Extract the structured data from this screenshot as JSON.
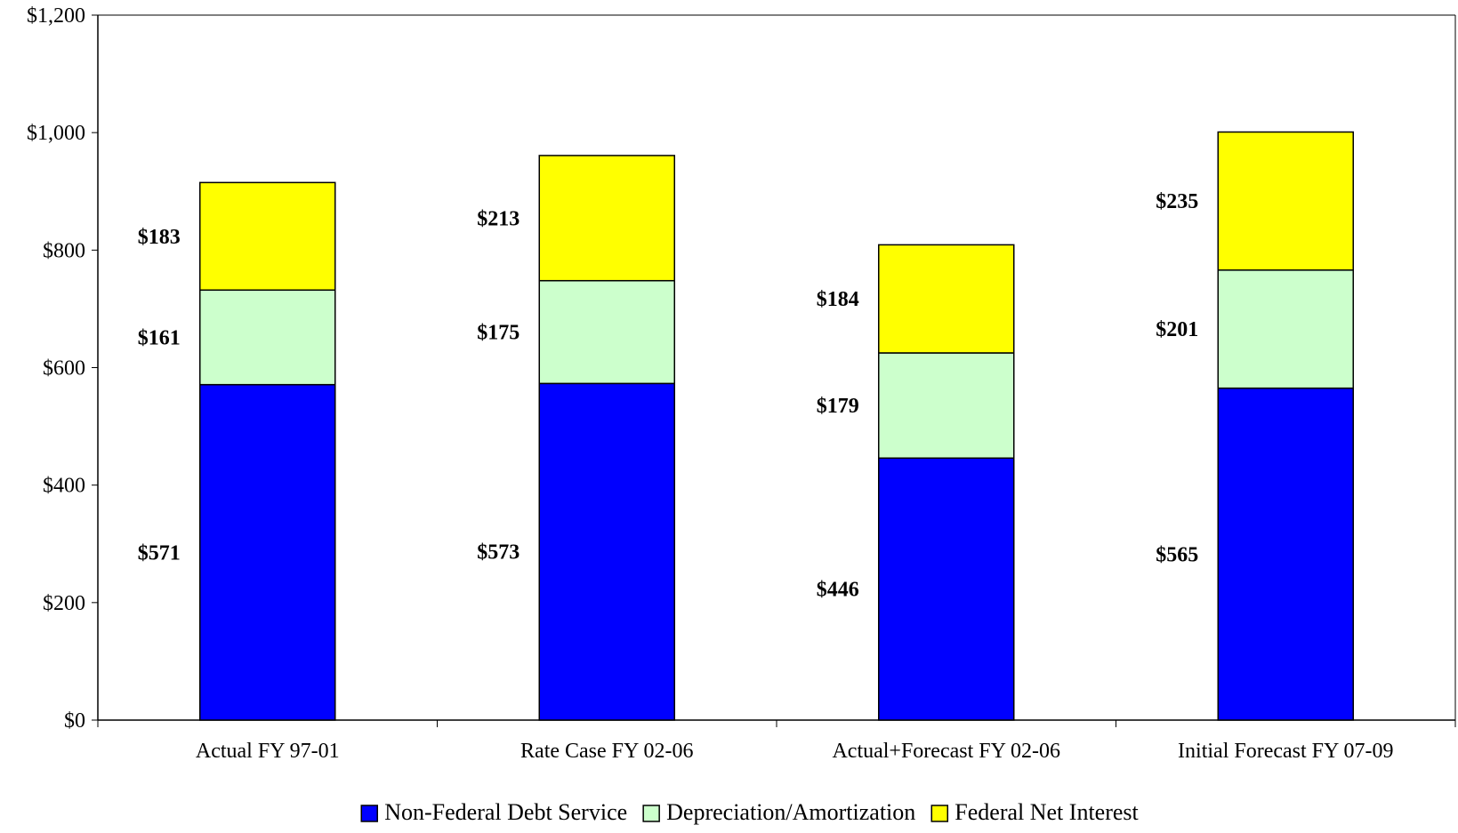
{
  "chart_data": {
    "type": "bar",
    "stacked": true,
    "title": "",
    "xlabel": "",
    "ylabel": "",
    "ylim": [
      0,
      1200
    ],
    "y_ticks": [
      "$0",
      "$200",
      "$400",
      "$600",
      "$800",
      "$1,000",
      "$1,200"
    ],
    "y_tick_values": [
      0,
      200,
      400,
      600,
      800,
      1000,
      1200
    ],
    "categories": [
      "Actual FY 97-01",
      "Rate Case FY 02-06",
      "Actual+Forecast FY 02-06",
      "Initial Forecast FY 07-09"
    ],
    "grid": false,
    "legend_position": "bottom",
    "series": [
      {
        "name": "Non-Federal Debt Service",
        "color": "#0000FF",
        "values": [
          571,
          573,
          446,
          565
        ],
        "labels": [
          "$571",
          "$573",
          "$446",
          "$565"
        ]
      },
      {
        "name": "Depreciation/Amortization",
        "color": "#CCFFCC",
        "values": [
          161,
          175,
          179,
          201
        ],
        "labels": [
          "$161",
          "$175",
          "$179",
          "$201"
        ]
      },
      {
        "name": "Federal Net Interest",
        "color": "#FFFF00",
        "values": [
          183,
          213,
          184,
          235
        ],
        "labels": [
          "$183",
          "$213",
          "$184",
          "$235"
        ]
      }
    ]
  }
}
